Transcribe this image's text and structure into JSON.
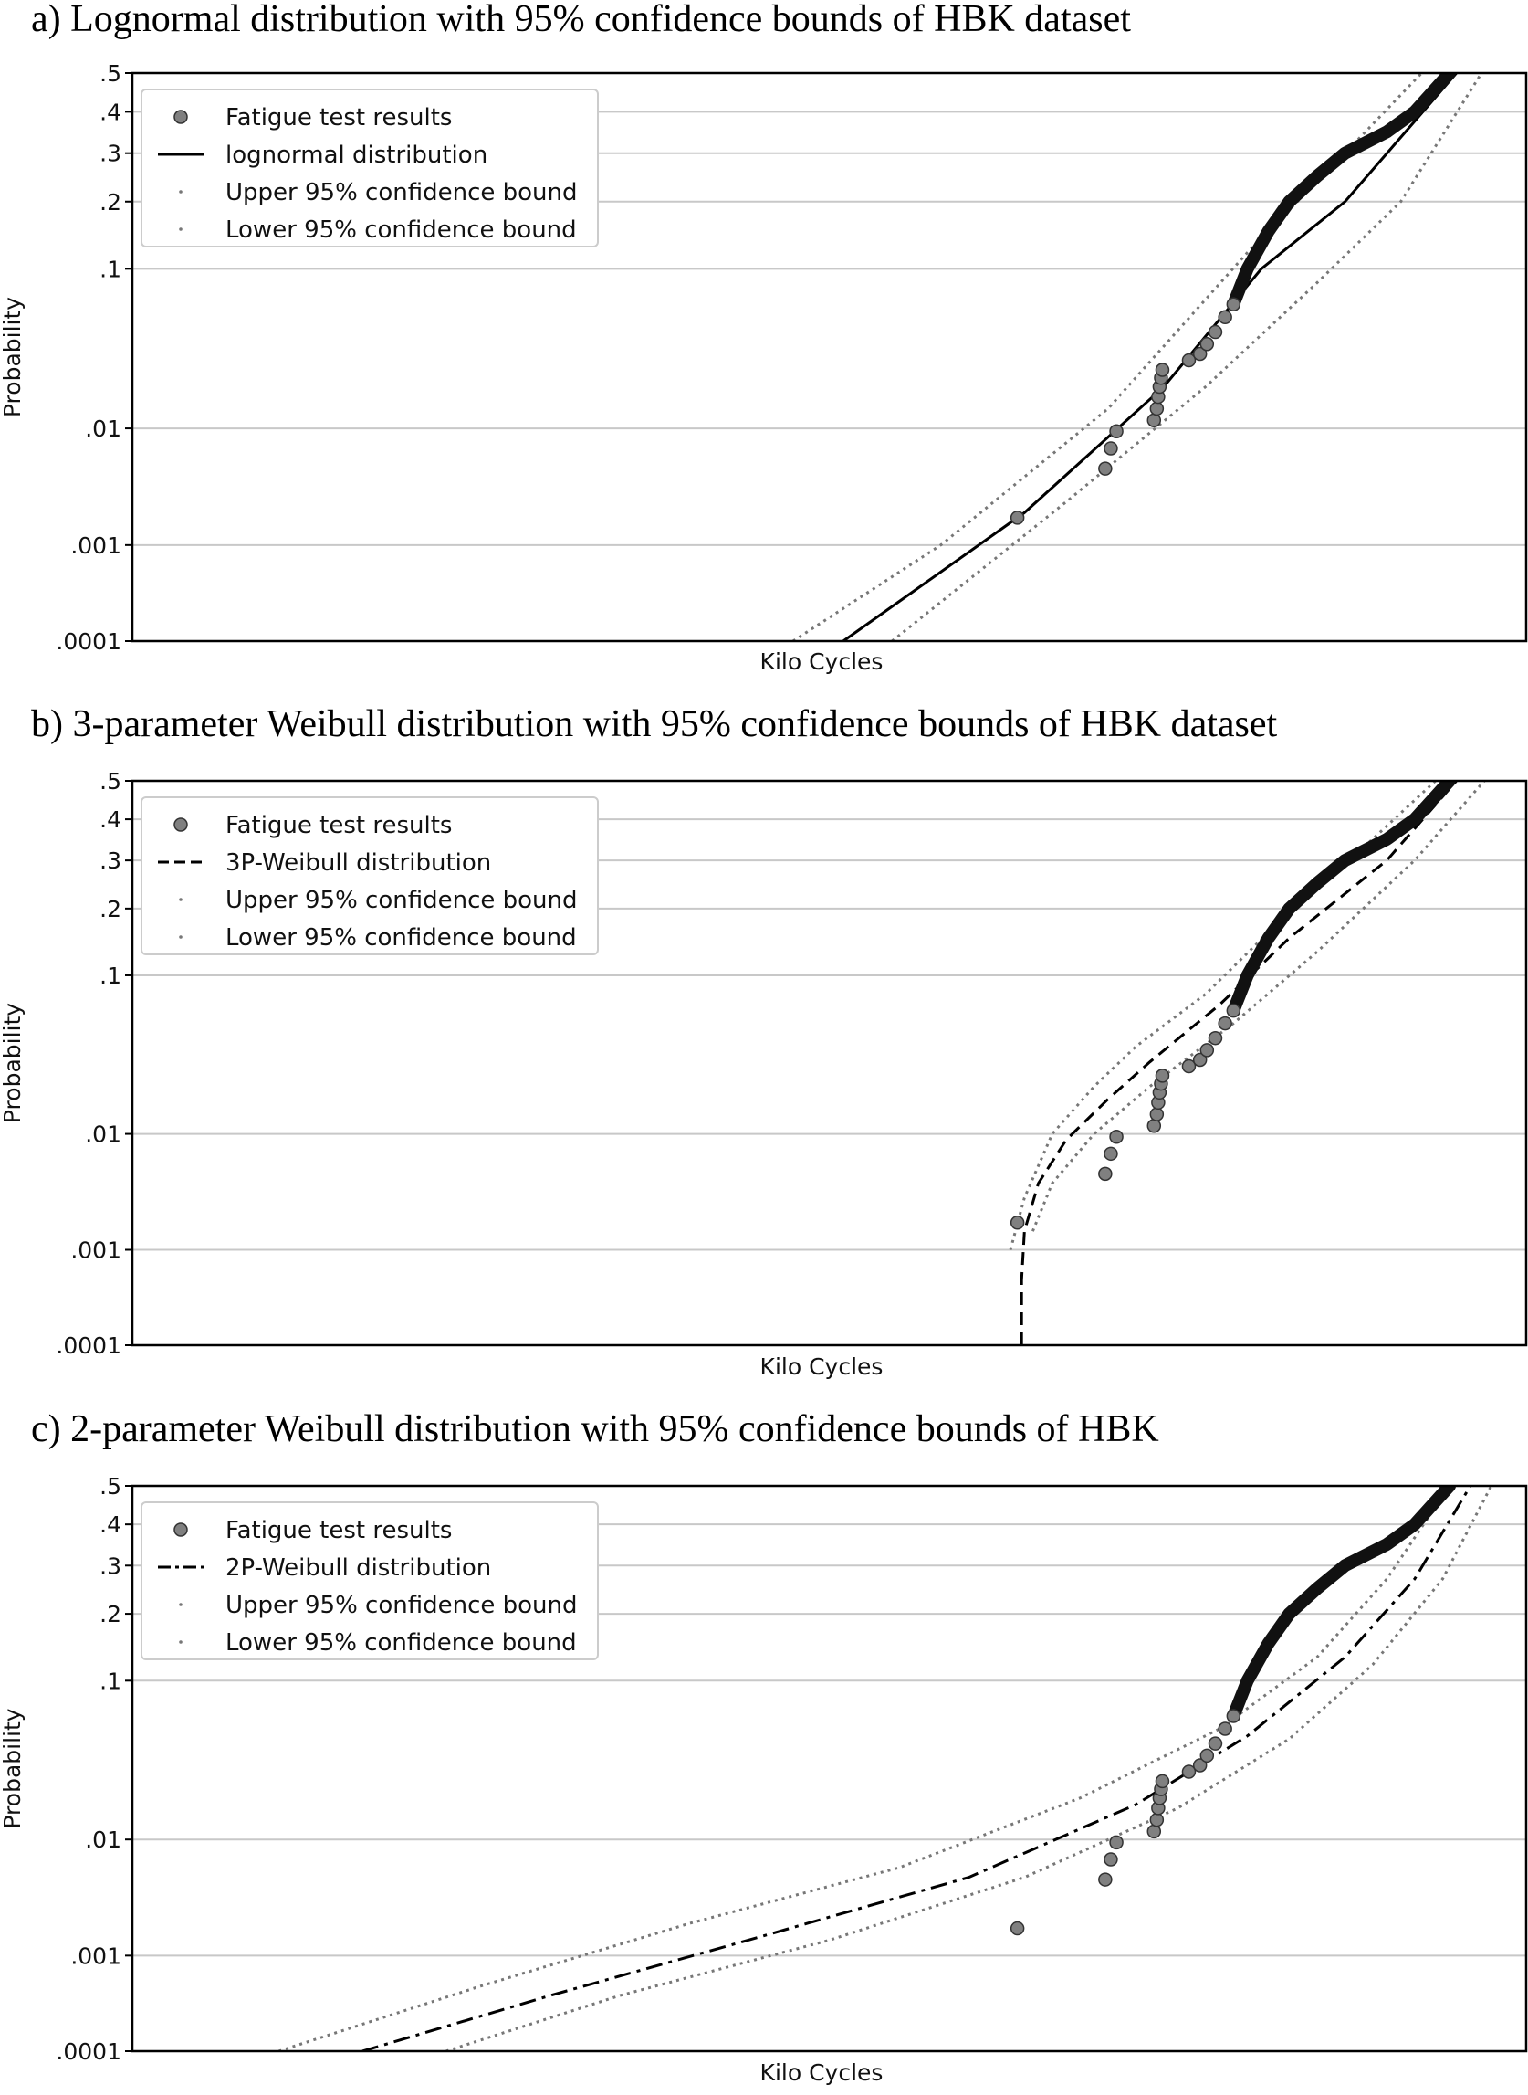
{
  "chart_data": [
    {
      "type": "scatter",
      "title": "a) Lognormal distribution with 95% confidence bounds of HBK dataset",
      "xlabel": "Kilo Cycles",
      "ylabel": "Probability",
      "y_scale": "probability (lognormal)",
      "y_ticks": [
        ".0001",
        ".001",
        ".01",
        ".1",
        ".2",
        ".3",
        ".4",
        ".5"
      ],
      "x_ticks": [],
      "grid": "horizontal",
      "legend_position": "top-left",
      "legend": [
        {
          "label": "Fatigue test results",
          "marker": "circle"
        },
        {
          "label": "lognormal distribution",
          "line": "solid"
        },
        {
          "label": "Upper 95% confidence bound",
          "line": "dotted"
        },
        {
          "label": "Lower 95% confidence bound",
          "line": "dotted"
        }
      ],
      "series": [
        {
          "name": "lognormal distribution",
          "style": "solid",
          "x": [
            0.51,
            0.64,
            0.74,
            0.81,
            0.87,
            0.95
          ],
          "y": [
            0.0001,
            0.002,
            0.02,
            0.1,
            0.2,
            0.5
          ]
        },
        {
          "name": "Upper 95% confidence bound",
          "style": "dotted",
          "x": [
            0.474,
            0.58,
            0.7,
            0.8,
            0.87,
            0.925
          ],
          "y": [
            0.0001,
            0.001,
            0.014,
            0.12,
            0.3,
            0.5
          ]
        },
        {
          "name": "Lower 95% confidence bound",
          "style": "dotted",
          "x": [
            0.545,
            0.67,
            0.77,
            0.85,
            0.91,
            0.968
          ],
          "y": [
            0.0001,
            0.0025,
            0.02,
            0.085,
            0.2,
            0.5
          ]
        }
      ],
      "points": [
        [
          0.635,
          0.0018
        ],
        [
          0.698,
          0.0048
        ],
        [
          0.702,
          0.007
        ],
        [
          0.706,
          0.0095
        ],
        [
          0.733,
          0.0115
        ],
        [
          0.735,
          0.014
        ],
        [
          0.736,
          0.017
        ],
        [
          0.737,
          0.02
        ],
        [
          0.738,
          0.023
        ],
        [
          0.739,
          0.026
        ],
        [
          0.758,
          0.03
        ],
        [
          0.766,
          0.033
        ],
        [
          0.771,
          0.038
        ],
        [
          0.777,
          0.045
        ],
        [
          0.784,
          0.055
        ],
        [
          0.79,
          0.065
        ]
      ],
      "dense_points": [
        [
          0.79,
          0.065
        ],
        [
          0.8,
          0.1
        ],
        [
          0.815,
          0.15
        ],
        [
          0.83,
          0.2
        ],
        [
          0.85,
          0.25
        ],
        [
          0.87,
          0.3
        ],
        [
          0.9,
          0.35
        ],
        [
          0.92,
          0.4
        ],
        [
          0.945,
          0.5
        ]
      ]
    },
    {
      "type": "scatter",
      "title": "b) 3-parameter Weibull distribution with 95% confidence bounds of HBK dataset",
      "xlabel": "Kilo Cycles",
      "ylabel": "Probability",
      "y_scale": "probability (lognormal)",
      "y_ticks": [
        ".0001",
        ".001",
        ".01",
        ".1",
        ".2",
        ".3",
        ".4",
        ".5"
      ],
      "x_ticks": [],
      "grid": "horizontal",
      "legend_position": "top-left",
      "legend": [
        {
          "label": "Fatigue test results",
          "marker": "circle"
        },
        {
          "label": "3P-Weibull distribution",
          "line": "dashed"
        },
        {
          "label": "Upper 95% confidence bound",
          "line": "dotted"
        },
        {
          "label": "Lower 95% confidence bound",
          "line": "dotted"
        }
      ],
      "series": [
        {
          "name": "3P-Weibull distribution",
          "style": "dashed",
          "x": [
            0.638,
            0.638,
            0.64,
            0.65,
            0.67,
            0.7,
            0.73,
            0.78,
            0.83,
            0.9,
            0.95
          ],
          "y": [
            0.0001,
            0.0005,
            0.0015,
            0.004,
            0.009,
            0.018,
            0.032,
            0.07,
            0.15,
            0.3,
            0.5
          ]
        },
        {
          "name": "Upper 95% confidence bound",
          "style": "dotted",
          "x": [
            0.63,
            0.64,
            0.66,
            0.69,
            0.72,
            0.77,
            0.82,
            0.88,
            0.935
          ],
          "y": [
            0.001,
            0.003,
            0.01,
            0.022,
            0.04,
            0.08,
            0.17,
            0.32,
            0.5
          ]
        },
        {
          "name": "Lower 95% confidence bound",
          "style": "dotted",
          "x": [
            0.646,
            0.66,
            0.69,
            0.73,
            0.79,
            0.85,
            0.92,
            0.97
          ],
          "y": [
            0.0015,
            0.004,
            0.01,
            0.022,
            0.055,
            0.13,
            0.3,
            0.5
          ]
        }
      ],
      "points": [
        [
          0.635,
          0.0018
        ],
        [
          0.698,
          0.0048
        ],
        [
          0.702,
          0.007
        ],
        [
          0.706,
          0.0095
        ],
        [
          0.733,
          0.0115
        ],
        [
          0.735,
          0.014
        ],
        [
          0.736,
          0.017
        ],
        [
          0.737,
          0.02
        ],
        [
          0.738,
          0.023
        ],
        [
          0.739,
          0.026
        ],
        [
          0.758,
          0.03
        ],
        [
          0.766,
          0.033
        ],
        [
          0.771,
          0.038
        ],
        [
          0.777,
          0.045
        ],
        [
          0.784,
          0.055
        ],
        [
          0.79,
          0.065
        ]
      ],
      "dense_points": [
        [
          0.79,
          0.065
        ],
        [
          0.8,
          0.1
        ],
        [
          0.815,
          0.15
        ],
        [
          0.83,
          0.2
        ],
        [
          0.85,
          0.25
        ],
        [
          0.87,
          0.3
        ],
        [
          0.9,
          0.35
        ],
        [
          0.92,
          0.4
        ],
        [
          0.945,
          0.5
        ]
      ]
    },
    {
      "type": "scatter",
      "title": "c) 2-parameter Weibull distribution with 95% confidence bounds of HBK",
      "xlabel": "Kilo Cycles",
      "ylabel": "Probability",
      "y_scale": "probability (lognormal)",
      "y_ticks": [
        ".0001",
        ".001",
        ".01",
        ".1",
        ".2",
        ".3",
        ".4",
        ".5"
      ],
      "x_ticks": [],
      "grid": "horizontal",
      "legend_position": "top-left",
      "legend": [
        {
          "label": "Fatigue test results",
          "marker": "circle"
        },
        {
          "label": "2P-Weibull distribution",
          "line": "dash-dot"
        },
        {
          "label": "Upper 95% confidence bound",
          "line": "dotted"
        },
        {
          "label": "Lower 95% confidence bound",
          "line": "dotted"
        }
      ],
      "series": [
        {
          "name": "2P-Weibull distribution",
          "style": "dash-dot",
          "x": [
            0.165,
            0.3,
            0.45,
            0.6,
            0.72,
            0.8,
            0.87,
            0.92,
            0.96
          ],
          "y": [
            0.0001,
            0.0004,
            0.0015,
            0.005,
            0.018,
            0.05,
            0.13,
            0.27,
            0.5
          ]
        },
        {
          "name": "Upper 95% confidence bound",
          "style": "dotted",
          "x": [
            0.105,
            0.25,
            0.4,
            0.55,
            0.68,
            0.78,
            0.85,
            0.9,
            0.945
          ],
          "y": [
            0.0001,
            0.0005,
            0.002,
            0.006,
            0.02,
            0.055,
            0.13,
            0.27,
            0.5
          ]
        },
        {
          "name": "Lower 95% confidence bound",
          "style": "dotted",
          "x": [
            0.225,
            0.35,
            0.5,
            0.64,
            0.75,
            0.83,
            0.89,
            0.94,
            0.975
          ],
          "y": [
            0.0001,
            0.0004,
            0.0014,
            0.005,
            0.017,
            0.048,
            0.12,
            0.27,
            0.5
          ]
        }
      ],
      "points": [
        [
          0.635,
          0.0018
        ],
        [
          0.698,
          0.0048
        ],
        [
          0.702,
          0.007
        ],
        [
          0.706,
          0.0095
        ],
        [
          0.733,
          0.0115
        ],
        [
          0.735,
          0.014
        ],
        [
          0.736,
          0.017
        ],
        [
          0.737,
          0.02
        ],
        [
          0.738,
          0.023
        ],
        [
          0.739,
          0.026
        ],
        [
          0.758,
          0.03
        ],
        [
          0.766,
          0.033
        ],
        [
          0.771,
          0.038
        ],
        [
          0.777,
          0.045
        ],
        [
          0.784,
          0.055
        ],
        [
          0.79,
          0.065
        ]
      ],
      "dense_points": [
        [
          0.79,
          0.065
        ],
        [
          0.8,
          0.1
        ],
        [
          0.815,
          0.15
        ],
        [
          0.83,
          0.2
        ],
        [
          0.85,
          0.25
        ],
        [
          0.87,
          0.3
        ],
        [
          0.9,
          0.35
        ],
        [
          0.92,
          0.4
        ],
        [
          0.945,
          0.5
        ]
      ]
    }
  ]
}
